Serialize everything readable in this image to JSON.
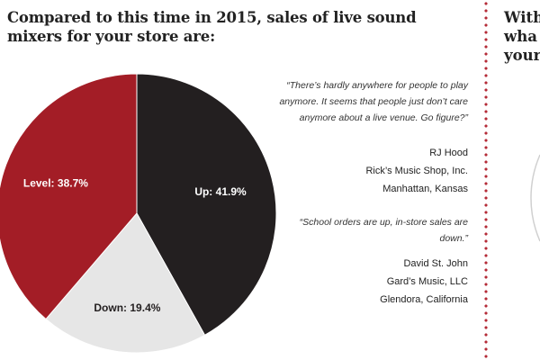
{
  "title": "Compared to this time in 2015, sales of live sound mixers for your store are:",
  "chart_data": {
    "type": "pie",
    "title": "Compared to this time in 2015, sales of live sound mixers for your store are:",
    "slices": [
      {
        "label": "Up: 41.9%",
        "category": "Up",
        "value": 41.9,
        "color": "#231f20"
      },
      {
        "label": "Down: 19.4%",
        "category": "Down",
        "value": 19.4,
        "color": "#e6e6e6"
      },
      {
        "label": "Level: 38.7%",
        "category": "Level",
        "value": 38.7,
        "color": "#a31d26"
      }
    ]
  },
  "quotes": [
    {
      "text": "“There’s hardly anywhere for people to play anymore. It seems that people just don’t care anymore about a live venue. Go figure?”",
      "name": "RJ Hood",
      "company": "Rick’s Music Shop, Inc.",
      "location": "Manhattan, Kansas"
    },
    {
      "text": "“School orders are up, in-store sales are down.”",
      "name": "David St. John",
      "company": "Gard’s Music, LLC",
      "location": "Glendora, California"
    }
  ],
  "right_panel": {
    "heading_lines": [
      "With",
      "wha",
      "your"
    ]
  },
  "colors": {
    "accent_red": "#a31d26",
    "dark": "#231f20",
    "light_gray": "#e6e6e6",
    "divider_red": "#b42a36"
  }
}
